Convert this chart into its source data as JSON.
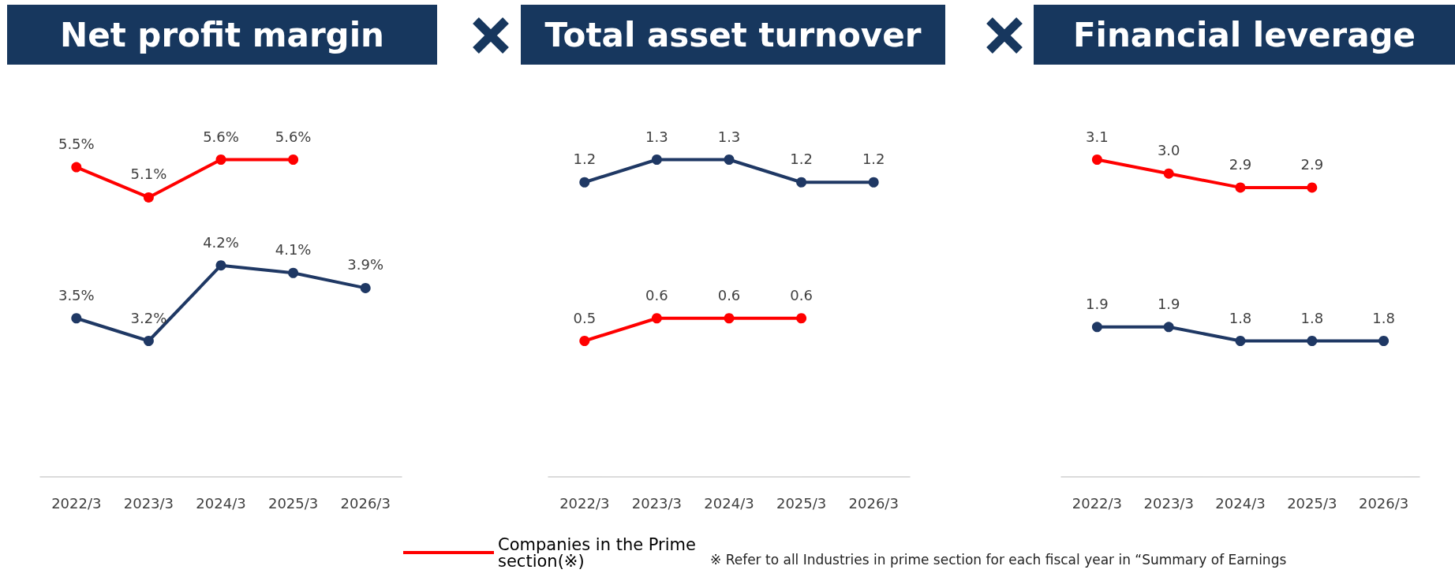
{
  "chart_data": [
    {
      "type": "line",
      "title": "Net profit margin",
      "categories": [
        "2022/3",
        "2023/3",
        "2024/3",
        "2025/3",
        "2026/3"
      ],
      "marker": "circle",
      "line_style": "solid",
      "legend": "bottom",
      "grid": false,
      "series": [
        {
          "color": "#1f3864",
          "values": [
            3.5,
            3.2,
            4.2,
            4.1,
            3.9
          ],
          "value_labels": [
            "3.5%",
            "3.2%",
            "4.2%",
            "4.1%",
            "3.9%"
          ]
        },
        {
          "name": "Companies in the Prime section(※)",
          "color": "#ff0000",
          "values": [
            5.5,
            5.1,
            5.6,
            5.6,
            null
          ],
          "value_labels": [
            "5.5%",
            "5.1%",
            "5.6%",
            "5.6%",
            null
          ]
        }
      ]
    },
    {
      "type": "line",
      "title": "Total asset turnover",
      "categories": [
        "2022/3",
        "2023/3",
        "2024/3",
        "2025/3",
        "2026/3"
      ],
      "marker": "circle",
      "line_style": "solid",
      "grid": false,
      "series": [
        {
          "color": "#1f3864",
          "values": [
            1.2,
            1.3,
            1.3,
            1.2,
            1.2
          ],
          "value_labels": [
            "1.2",
            "1.3",
            "1.3",
            "1.2",
            "1.2"
          ]
        },
        {
          "color": "#ff0000",
          "values": [
            0.5,
            0.6,
            0.6,
            0.6,
            null
          ],
          "value_labels": [
            "0.5",
            "0.6",
            "0.6",
            "0.6",
            null
          ]
        }
      ]
    },
    {
      "type": "line",
      "title": "Financial leverage",
      "categories": [
        "2022/3",
        "2023/3",
        "2024/3",
        "2025/3",
        "2026/3"
      ],
      "marker": "circle",
      "line_style": "solid",
      "grid": false,
      "annotations": [
        "※ Refer to all Industries in prime section for each fiscal year in “Summary of Earnings"
      ],
      "series": [
        {
          "color": "#1f3864",
          "values": [
            1.9,
            1.9,
            1.8,
            1.8,
            1.8
          ],
          "value_labels": [
            "1.9",
            "1.9",
            "1.8",
            "1.8",
            "1.8"
          ]
        },
        {
          "color": "#ff0000",
          "values": [
            3.1,
            3.0,
            2.9,
            2.9,
            null
          ],
          "value_labels": [
            "3.1",
            "3.0",
            "2.9",
            "2.9",
            null
          ]
        }
      ]
    }
  ]
}
